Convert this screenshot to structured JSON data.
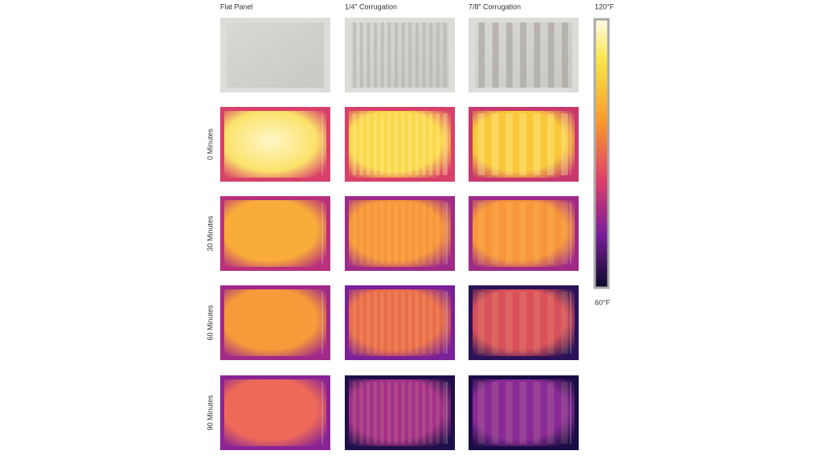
{
  "columns": [
    "Flat Panel",
    "1/4” Corrugation",
    "7/8” Corrugation"
  ],
  "rows": [
    "0 Minutes",
    "30 Minutes",
    "60 Minutes",
    "90 Minutes"
  ],
  "colorbar": {
    "max_label": "120°F",
    "min_label": "60°F"
  }
}
